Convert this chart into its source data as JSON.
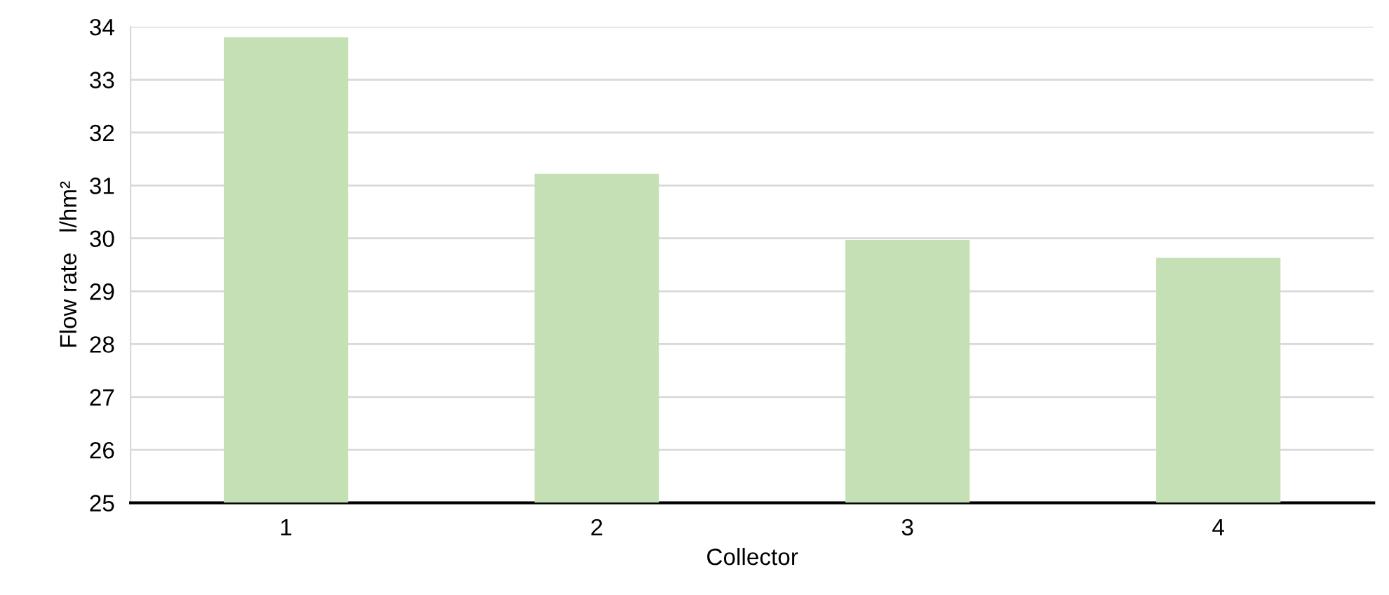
{
  "chart_data": {
    "type": "bar",
    "xlabel": "Collector",
    "ylabel": "Flow rate   l/hm²",
    "categories": [
      "1",
      "2",
      "3",
      "4"
    ],
    "values": [
      33.8,
      31.22,
      29.97,
      29.63
    ],
    "color": "#c5e0b4",
    "ylim": [
      25,
      34
    ],
    "yticks": [
      25,
      26,
      27,
      28,
      29,
      30,
      31,
      32,
      33,
      34
    ],
    "grid": "y"
  }
}
